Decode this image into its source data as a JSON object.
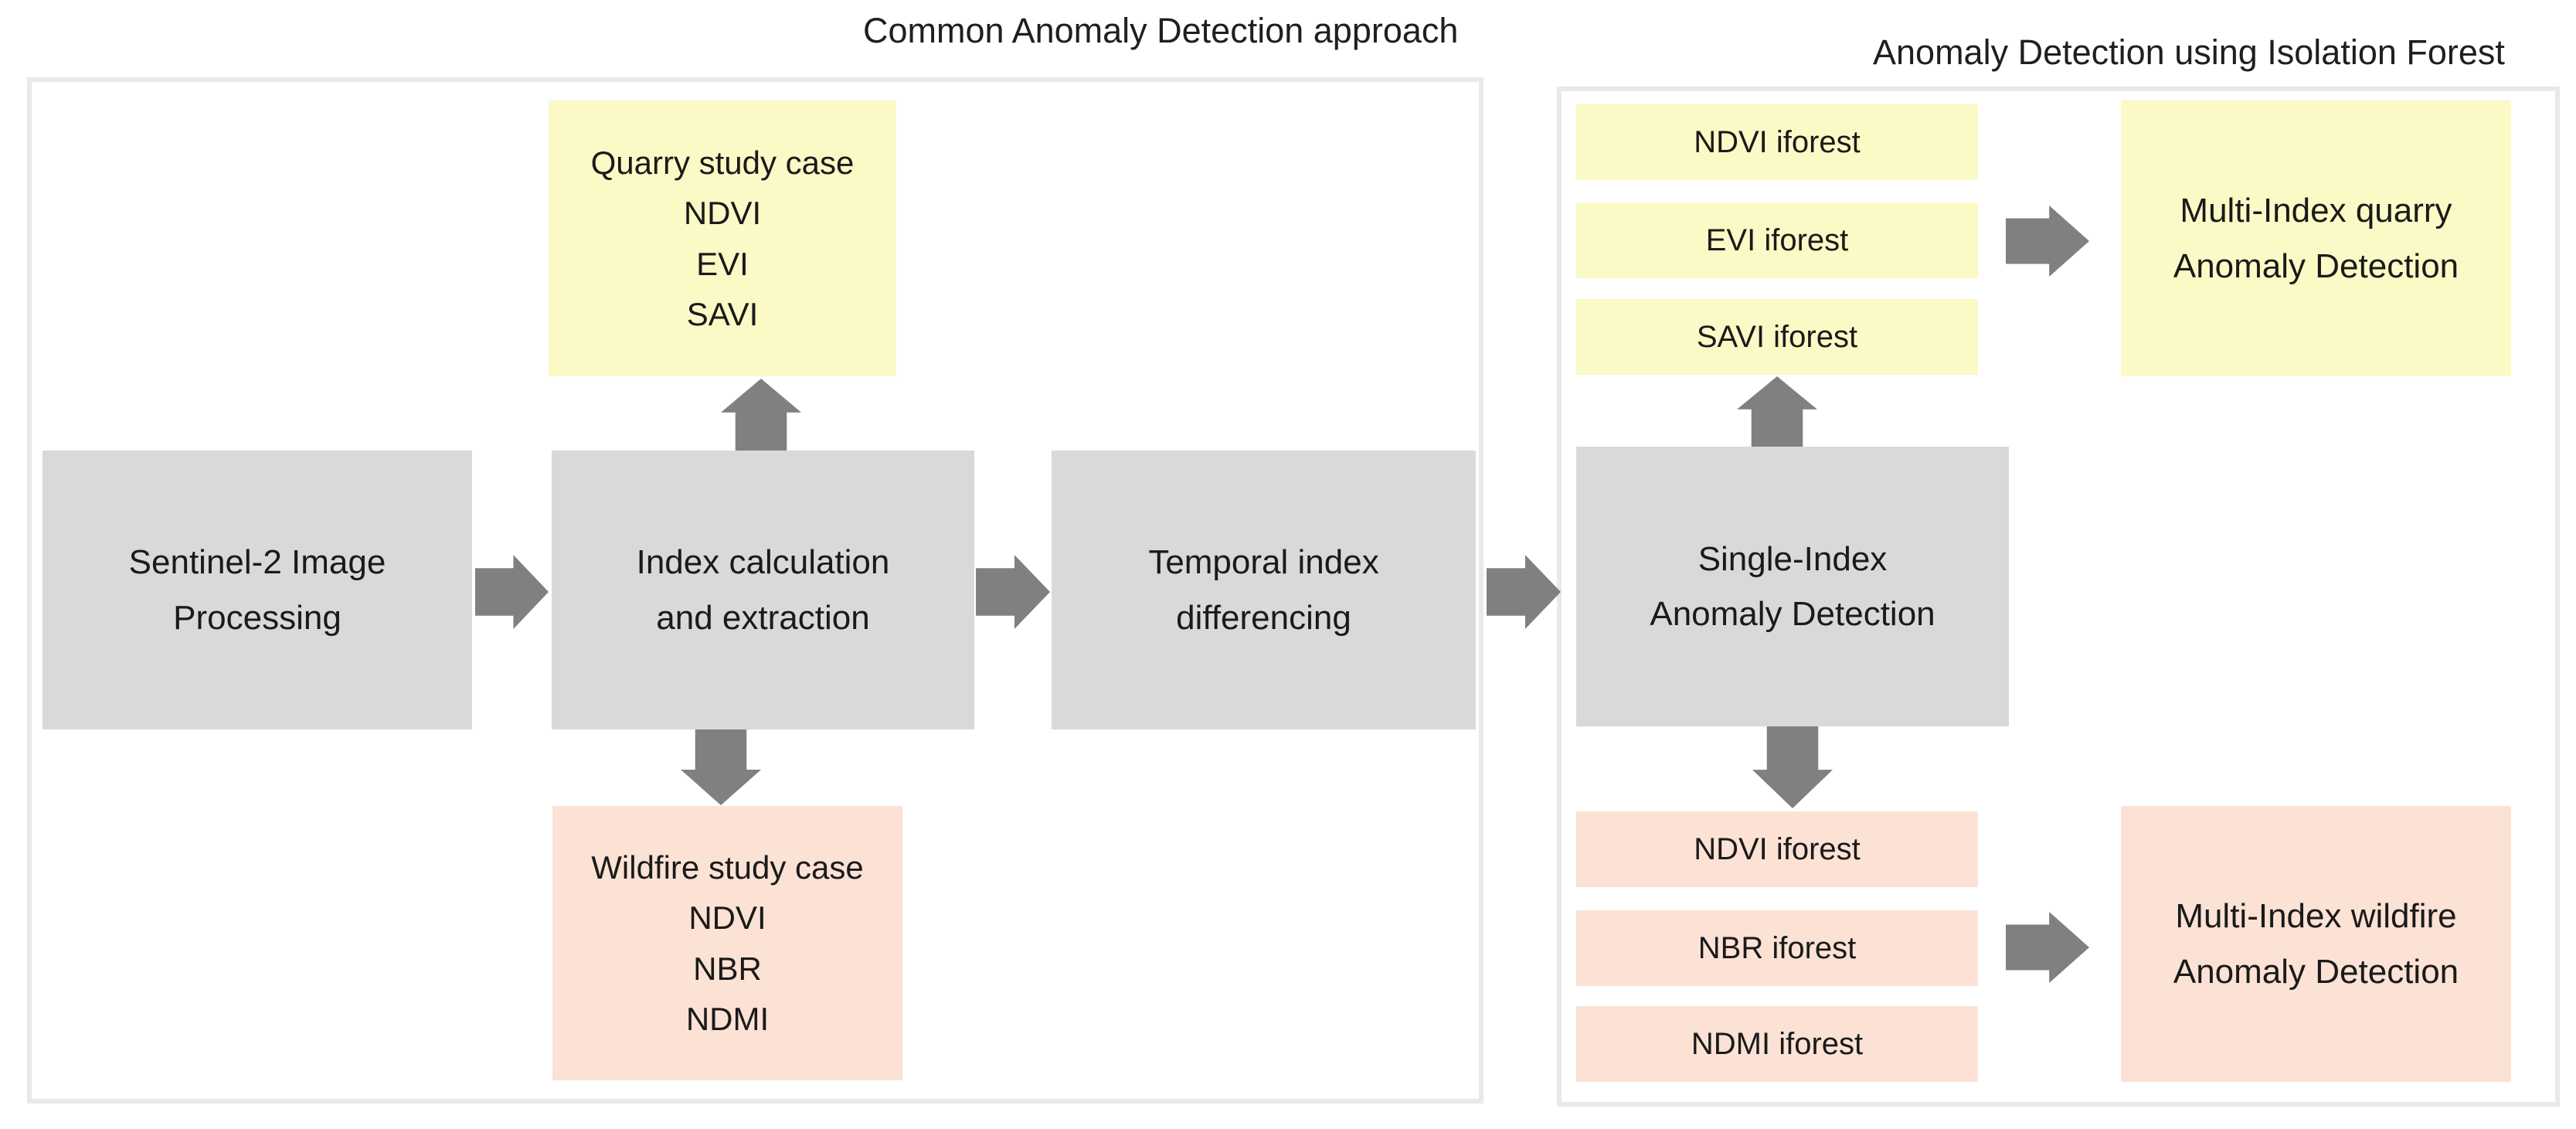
{
  "titles": {
    "left": "Common Anomaly Detection approach",
    "right": "Anomaly Detection using Isolation Forest"
  },
  "left_panel": {
    "boxes": {
      "sentinel": "Sentinel-2 Image\nProcessing",
      "index_calc": "Index calculation\nand extraction",
      "temporal": "Temporal index\ndifferencing",
      "quarry_case": "Quarry study case\nNDVI\nEVI\nSAVI",
      "wildfire_case": "Wildfire study case\nNDVI\nNBR\nNDMI"
    }
  },
  "right_panel": {
    "yellow_rows": [
      "NDVI iforest",
      "EVI iforest",
      "SAVI iforest"
    ],
    "peach_rows": [
      "NDVI iforest",
      "NBR iforest",
      "NDMI iforest"
    ],
    "boxes": {
      "single_index": "Single-Index\nAnomaly Detection",
      "multi_quarry": "Multi-Index quarry\nAnomaly Detection",
      "multi_wildfire": "Multi-Index wildfire\nAnomaly Detection"
    }
  },
  "colors": {
    "box_gray": "#d9d9d9",
    "box_yellow": "#fbf9c5",
    "box_peach": "#fbe2d4",
    "arrow_gray": "#808080",
    "panel_border": "#e9e9e9",
    "text": "#1a1a1a",
    "background": "#ffffff"
  },
  "icons": {
    "arrow_right": "css-block-arrow-right",
    "arrow_up": "css-block-arrow-up",
    "arrow_down": "css-block-arrow-down"
  }
}
